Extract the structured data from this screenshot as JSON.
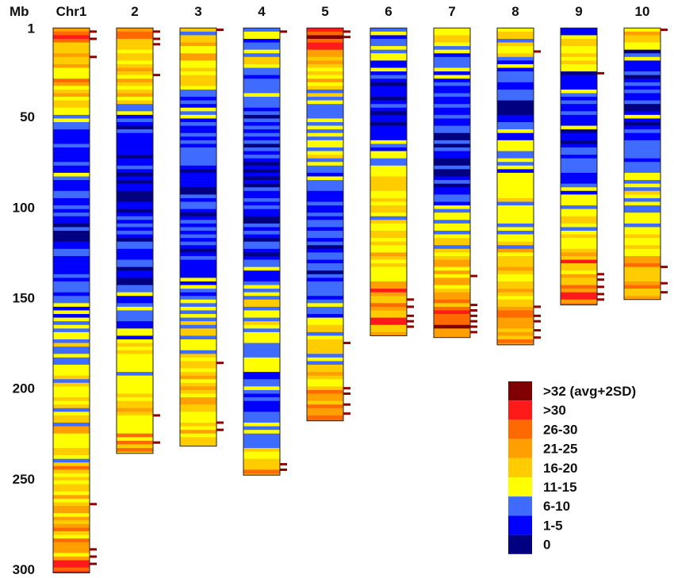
{
  "chart_data": {
    "type": "heatmap",
    "title": "",
    "ylabel": "Mb",
    "ylim": [
      0,
      300
    ],
    "y_ticks": [
      {
        "label": "1",
        "value": 1
      },
      {
        "label": "50",
        "value": 50
      },
      {
        "label": "100",
        "value": 100
      },
      {
        "label": "150",
        "value": 150
      },
      {
        "label": "200",
        "value": 200
      },
      {
        "label": "250",
        "value": 250
      },
      {
        "label": "300",
        "value": 300
      }
    ],
    "bin_size_mb": 2,
    "chromosomes": [
      {
        "label": "Chr1",
        "length_mb": 301,
        "seed": 11,
        "profile": [
          [
            0,
            5.5
          ],
          [
            10,
            4.5
          ],
          [
            20,
            4
          ],
          [
            35,
            4.5
          ],
          [
            45,
            3
          ],
          [
            50,
            2
          ],
          [
            60,
            2
          ],
          [
            75,
            1.6
          ],
          [
            85,
            1.8
          ],
          [
            100,
            1.5
          ],
          [
            110,
            1.2
          ],
          [
            130,
            1.2
          ],
          [
            140,
            1.6
          ],
          [
            160,
            2.2
          ],
          [
            180,
            2.8
          ],
          [
            195,
            3.2
          ],
          [
            215,
            3.4
          ],
          [
            240,
            3.6
          ],
          [
            265,
            4
          ],
          [
            285,
            4.6
          ],
          [
            300,
            5.6
          ]
        ],
        "peaks_mb": [
          3,
          7,
          17,
          264,
          289,
          293,
          297
        ]
      },
      {
        "label": "2",
        "length_mb": 235,
        "seed": 23,
        "profile": [
          [
            0,
            5.5
          ],
          [
            10,
            4.5
          ],
          [
            30,
            4
          ],
          [
            45,
            3
          ],
          [
            55,
            1.5
          ],
          [
            80,
            1
          ],
          [
            110,
            1
          ],
          [
            130,
            1.3
          ],
          [
            150,
            1.8
          ],
          [
            170,
            2.4
          ],
          [
            185,
            3.2
          ],
          [
            200,
            3.8
          ],
          [
            215,
            4
          ],
          [
            230,
            4.5
          ],
          [
            235,
            4.8
          ]
        ],
        "peaks_mb": [
          3,
          7,
          10,
          27,
          215,
          230
        ]
      },
      {
        "label": "3",
        "length_mb": 231,
        "seed": 37,
        "profile": [
          [
            0,
            4.5
          ],
          [
            15,
            4
          ],
          [
            25,
            3
          ],
          [
            40,
            2.2
          ],
          [
            60,
            1.6
          ],
          [
            90,
            1.2
          ],
          [
            120,
            1.4
          ],
          [
            150,
            2.2
          ],
          [
            165,
            3
          ],
          [
            190,
            3.6
          ],
          [
            210,
            3.8
          ],
          [
            231,
            3.8
          ]
        ],
        "peaks_mb": [
          2,
          186,
          219,
          223
        ]
      },
      {
        "label": "4",
        "length_mb": 247,
        "seed": 41,
        "profile": [
          [
            0,
            2.2
          ],
          [
            15,
            2.6
          ],
          [
            30,
            2.4
          ],
          [
            50,
            1.4
          ],
          [
            70,
            1.5
          ],
          [
            90,
            1.3
          ],
          [
            120,
            1.4
          ],
          [
            140,
            2.2
          ],
          [
            160,
            3.2
          ],
          [
            180,
            2.6
          ],
          [
            195,
            2
          ],
          [
            215,
            2
          ],
          [
            230,
            2.4
          ],
          [
            240,
            4.5
          ],
          [
            247,
            5
          ]
        ],
        "peaks_mb": [
          3,
          242,
          245
        ]
      },
      {
        "label": "5",
        "length_mb": 217,
        "seed": 53,
        "profile": [
          [
            0,
            6.6
          ],
          [
            8,
            6.2
          ],
          [
            12,
            5.5
          ],
          [
            25,
            4
          ],
          [
            45,
            3
          ],
          [
            60,
            2.8
          ],
          [
            80,
            2.4
          ],
          [
            95,
            1.8
          ],
          [
            120,
            1.3
          ],
          [
            145,
            1.6
          ],
          [
            160,
            2.4
          ],
          [
            175,
            3.2
          ],
          [
            190,
            3.6
          ],
          [
            205,
            4.4
          ],
          [
            217,
            5.6
          ]
        ],
        "peaks_mb": [
          3,
          6,
          175,
          200,
          203,
          209,
          214
        ]
      },
      {
        "label": "6",
        "length_mb": 170,
        "seed": 67,
        "profile": [
          [
            0,
            3.2
          ],
          [
            5,
            2.2
          ],
          [
            25,
            1.8
          ],
          [
            45,
            1.3
          ],
          [
            65,
            1.6
          ],
          [
            80,
            3
          ],
          [
            95,
            3.4
          ],
          [
            115,
            3.4
          ],
          [
            130,
            3.6
          ],
          [
            145,
            4.2
          ],
          [
            155,
            5
          ],
          [
            165,
            5.2
          ],
          [
            170,
            4.8
          ]
        ],
        "peaks_mb": [
          151,
          155,
          160,
          163,
          166
        ]
      },
      {
        "label": "7",
        "length_mb": 171,
        "seed": 71,
        "profile": [
          [
            0,
            3.6
          ],
          [
            8,
            3.2
          ],
          [
            15,
            2.2
          ],
          [
            30,
            1.4
          ],
          [
            60,
            1.3
          ],
          [
            90,
            1.4
          ],
          [
            100,
            2.4
          ],
          [
            115,
            3.2
          ],
          [
            130,
            3.8
          ],
          [
            150,
            4.6
          ],
          [
            160,
            4.8
          ],
          [
            165,
            6
          ],
          [
            171,
            5
          ]
        ],
        "peaks_mb": [
          138,
          154,
          157,
          160,
          163,
          166,
          169
        ]
      },
      {
        "label": "8",
        "length_mb": 175,
        "seed": 83,
        "profile": [
          [
            0,
            3.6
          ],
          [
            10,
            3.2
          ],
          [
            20,
            2.2
          ],
          [
            35,
            1.5
          ],
          [
            60,
            1.8
          ],
          [
            80,
            2.6
          ],
          [
            100,
            3
          ],
          [
            120,
            3.6
          ],
          [
            140,
            4
          ],
          [
            160,
            4.6
          ],
          [
            175,
            5
          ]
        ],
        "peaks_mb": [
          14,
          155,
          160,
          163,
          168,
          172
        ]
      },
      {
        "label": "9",
        "length_mb": 153,
        "seed": 97,
        "profile": [
          [
            0,
            2.2
          ],
          [
            5,
            3.4
          ],
          [
            20,
            3.6
          ],
          [
            28,
            2
          ],
          [
            50,
            1.4
          ],
          [
            80,
            1.5
          ],
          [
            95,
            2.2
          ],
          [
            115,
            3.2
          ],
          [
            130,
            3.8
          ],
          [
            140,
            4.8
          ],
          [
            150,
            5.2
          ],
          [
            153,
            4.8
          ]
        ],
        "peaks_mb": [
          26,
          137,
          140,
          144,
          148,
          151
        ]
      },
      {
        "label": "10",
        "length_mb": 150,
        "seed": 101,
        "profile": [
          [
            0,
            4.2
          ],
          [
            5,
            3.6
          ],
          [
            10,
            2.4
          ],
          [
            25,
            1.4
          ],
          [
            45,
            1.2
          ],
          [
            70,
            1.6
          ],
          [
            85,
            2.8
          ],
          [
            105,
            2.6
          ],
          [
            115,
            3.4
          ],
          [
            130,
            4.2
          ],
          [
            140,
            4.8
          ],
          [
            150,
            4.6
          ]
        ],
        "peaks_mb": [
          2,
          133,
          142,
          147
        ]
      }
    ],
    "legend": [
      {
        "label": ">32 (avg+2SD)",
        "color": "#800000"
      },
      {
        "label": ">30",
        "color": "#ff1a1a"
      },
      {
        "label": "26-30",
        "color": "#ff6a00"
      },
      {
        "label": "21-25",
        "color": "#ffa000"
      },
      {
        "label": "16-20",
        "color": "#ffcc00"
      },
      {
        "label": "11-15",
        "color": "#ffff00"
      },
      {
        "label": "6-10",
        "color": "#3f6cff"
      },
      {
        "label": "1-5",
        "color": "#0000ff"
      },
      {
        "label": "0",
        "color": "#000080"
      }
    ],
    "legend_position": "bottom-right"
  }
}
